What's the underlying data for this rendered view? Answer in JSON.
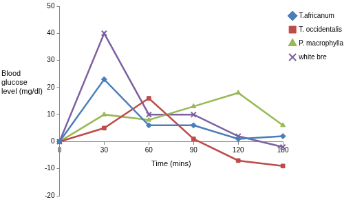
{
  "chart_data": {
    "type": "line",
    "x_label": "Time (mins)",
    "y_label": "Blood glucose level (mg/dl)",
    "categories": [
      "0",
      "30",
      "60",
      "90",
      "120",
      "180"
    ],
    "series": [
      {
        "name": "T.africanum",
        "color": "#4a7ebb",
        "marker": "diamond",
        "values": [
          0,
          23,
          6,
          6,
          1,
          2
        ]
      },
      {
        "name": "T. occidentalis",
        "color": "#be4b48",
        "marker": "square",
        "values": [
          0,
          5,
          16,
          1,
          -7,
          -9
        ]
      },
      {
        "name": "P. macrophylla",
        "color": "#98b954",
        "marker": "triangle",
        "values": [
          0,
          10,
          8,
          13,
          18,
          6
        ]
      },
      {
        "name": "white bre",
        "color": "#7d60a0",
        "marker": "x",
        "values": [
          0,
          40,
          10,
          10,
          2,
          -2
        ]
      }
    ],
    "ylim": [
      -20,
      50
    ],
    "yticks": [
      -20,
      -10,
      0,
      10,
      20,
      30,
      40,
      50
    ],
    "grid": false,
    "legend": "right"
  }
}
